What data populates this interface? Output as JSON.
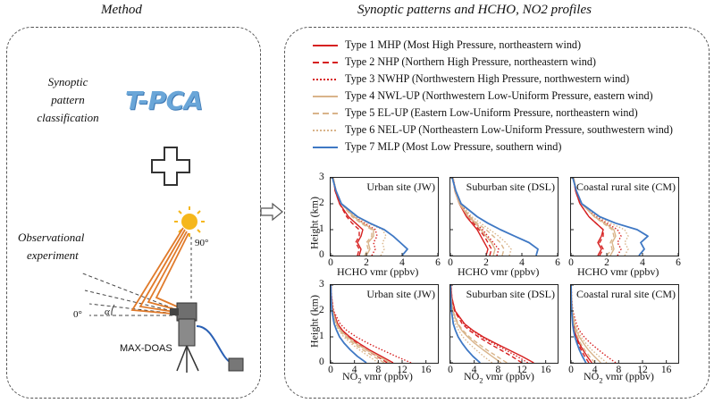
{
  "method_panel": {
    "title": "Method",
    "synoptic_text": [
      "Synoptic",
      "pattern",
      "classification"
    ],
    "tpca_label": "T-PCA",
    "observational_text": [
      "Observational",
      "experiment"
    ],
    "angle_90": "90°",
    "angle_0": "0°",
    "angle_alpha": "α",
    "instrument_label": "MAX-DOAS"
  },
  "results_panel": {
    "title": "Synoptic patterns and HCHO, NO2 profiles"
  },
  "legend": [
    {
      "label": "Type 1 MHP (Most High Pressure, northeastern wind)",
      "color": "#d62020",
      "dash": "solid"
    },
    {
      "label": "Type 2 NHP (Northern High Pressure, northeastern wind)",
      "color": "#d62020",
      "dash": "dashed"
    },
    {
      "label": "Type 3 NWHP (Northwestern High Pressure, northwestern wind)",
      "color": "#d62020",
      "dash": "dotted"
    },
    {
      "label": "Type 4 NWL-UP (Northwestern Low-Uniform Pressure, eastern wind)",
      "color": "#d9b48a",
      "dash": "solid"
    },
    {
      "label": "Type 5 EL-UP (Eastern Low-Uniform Pressure, northeastern wind)",
      "color": "#d9b48a",
      "dash": "dashed"
    },
    {
      "label": "Type 6 NEL-UP (Northeastern Low-Uniform Pressure, southwestern wind)",
      "color": "#d9b48a",
      "dash": "dotted"
    },
    {
      "label": "Type 7 MLP (Most Low Pressure, southern wind)",
      "color": "#3f78c4",
      "dash": "solid"
    }
  ],
  "axis_labels": {
    "height": "Height (km)",
    "hcho": "HCHO vmr (ppbv)",
    "no2_prefix": "NO",
    "no2_sub": "2",
    "no2_suffix": " vmr (ppbv)"
  },
  "chart_data": [
    {
      "type": "line",
      "site": "Urban site (JW)",
      "species": "HCHO",
      "xlim": [
        0,
        6
      ],
      "ylim": [
        0,
        3
      ],
      "xticks": [
        "0",
        "2",
        "4",
        "6"
      ],
      "yticks": [
        "0",
        "1",
        "2",
        "3"
      ],
      "y": [
        0,
        0.25,
        0.5,
        0.75,
        1.0,
        1.25,
        1.5,
        2.0,
        2.5,
        3.0
      ],
      "series": [
        {
          "x": [
            1.6,
            1.7,
            1.5,
            1.7,
            1.8,
            1.4,
            1.0,
            0.5,
            0.25,
            0.15
          ]
        },
        {
          "x": [
            1.5,
            1.6,
            1.4,
            1.6,
            1.6,
            1.2,
            0.9,
            0.5,
            0.25,
            0.15
          ]
        },
        {
          "x": [
            2.3,
            2.5,
            2.4,
            2.6,
            2.5,
            1.9,
            1.3,
            0.6,
            0.3,
            0.15
          ]
        },
        {
          "x": [
            2.0,
            2.2,
            2.1,
            2.4,
            2.4,
            1.8,
            1.3,
            0.6,
            0.3,
            0.15
          ]
        },
        {
          "x": [
            1.9,
            2.1,
            2.0,
            2.3,
            2.3,
            1.7,
            1.2,
            0.6,
            0.3,
            0.15
          ]
        },
        {
          "x": [
            2.8,
            3.0,
            2.9,
            3.1,
            2.9,
            2.1,
            1.4,
            0.6,
            0.3,
            0.15
          ]
        },
        {
          "x": [
            4.0,
            4.3,
            3.9,
            3.5,
            3.0,
            2.2,
            1.5,
            0.6,
            0.3,
            0.1
          ]
        }
      ]
    },
    {
      "type": "line",
      "site": "Suburban site (DSL)",
      "species": "HCHO",
      "xlim": [
        0,
        6
      ],
      "ylim": [
        0,
        3
      ],
      "xticks": [
        "0",
        "2",
        "4",
        "6"
      ],
      "yticks": [
        "0",
        "1",
        "2",
        "3"
      ],
      "y": [
        0,
        0.25,
        0.5,
        0.75,
        1.0,
        1.25,
        1.5,
        2.0,
        2.5,
        3.0
      ],
      "series": [
        {
          "x": [
            2.0,
            2.1,
            1.9,
            1.7,
            1.5,
            1.2,
            0.9,
            0.5,
            0.25,
            0.15
          ]
        },
        {
          "x": [
            2.2,
            2.3,
            2.1,
            1.9,
            1.6,
            1.3,
            1.0,
            0.5,
            0.25,
            0.15
          ]
        },
        {
          "x": [
            2.6,
            2.7,
            2.4,
            2.1,
            1.8,
            1.4,
            1.1,
            0.55,
            0.3,
            0.15
          ]
        },
        {
          "x": [
            2.4,
            2.5,
            2.3,
            2.0,
            1.7,
            1.4,
            1.0,
            0.5,
            0.25,
            0.15
          ]
        },
        {
          "x": [
            2.9,
            3.0,
            2.8,
            2.4,
            2.0,
            1.5,
            1.1,
            0.55,
            0.3,
            0.15
          ]
        },
        {
          "x": [
            3.3,
            3.4,
            3.1,
            2.7,
            2.2,
            1.7,
            1.2,
            0.6,
            0.3,
            0.15
          ]
        },
        {
          "x": [
            4.8,
            4.9,
            4.4,
            3.6,
            2.8,
            2.1,
            1.5,
            0.6,
            0.3,
            0.1
          ]
        }
      ]
    },
    {
      "type": "line",
      "site": "Coastal rural site (CM)",
      "species": "HCHO",
      "xlim": [
        0,
        6
      ],
      "ylim": [
        0,
        3
      ],
      "xticks": [
        "0",
        "2",
        "4",
        "6"
      ],
      "yticks": [
        "0",
        "1",
        "2",
        "3"
      ],
      "y": [
        0,
        0.25,
        0.5,
        0.75,
        1.0,
        1.25,
        1.5,
        2.0,
        2.5,
        3.0
      ],
      "series": [
        {
          "x": [
            1.5,
            1.7,
            1.5,
            1.7,
            1.8,
            1.4,
            1.0,
            0.5,
            0.25,
            0.15
          ]
        },
        {
          "x": [
            1.6,
            1.8,
            1.6,
            1.8,
            1.8,
            1.4,
            1.0,
            0.5,
            0.25,
            0.15
          ]
        },
        {
          "x": [
            2.6,
            2.8,
            2.6,
            2.8,
            2.6,
            2.0,
            1.4,
            0.6,
            0.3,
            0.15
          ]
        },
        {
          "x": [
            2.2,
            2.4,
            2.3,
            2.5,
            2.4,
            1.9,
            1.3,
            0.6,
            0.3,
            0.15
          ]
        },
        {
          "x": [
            2.0,
            2.3,
            2.2,
            2.4,
            2.3,
            1.8,
            1.3,
            0.6,
            0.3,
            0.15
          ]
        },
        {
          "x": [
            3.0,
            3.2,
            3.0,
            3.2,
            3.0,
            2.2,
            1.5,
            0.6,
            0.3,
            0.15
          ]
        },
        {
          "x": [
            3.8,
            4.1,
            3.9,
            4.3,
            3.7,
            2.5,
            1.6,
            0.6,
            0.3,
            0.1
          ]
        }
      ]
    },
    {
      "type": "line",
      "site": "Urban site (JW)",
      "species": "NO2",
      "xlim": [
        0,
        18
      ],
      "ylim": [
        0,
        3
      ],
      "xticks": [
        "0",
        "4",
        "8",
        "12",
        "16"
      ],
      "yticks": [
        "0",
        "1",
        "2",
        "3"
      ],
      "y": [
        0,
        0.25,
        0.5,
        0.75,
        1.0,
        1.25,
        1.5,
        2.0,
        2.5,
        3.0
      ],
      "series": [
        {
          "x": [
            10.5,
            8.5,
            6.5,
            4.8,
            3.2,
            2.0,
            1.2,
            0.4,
            0.15,
            0.05
          ]
        },
        {
          "x": [
            9.5,
            7.8,
            6.0,
            4.4,
            3.0,
            1.9,
            1.1,
            0.4,
            0.15,
            0.05
          ]
        },
        {
          "x": [
            13.5,
            11.0,
            8.6,
            6.3,
            4.3,
            2.7,
            1.6,
            0.5,
            0.2,
            0.05
          ]
        },
        {
          "x": [
            10.0,
            8.0,
            6.0,
            4.2,
            2.8,
            1.7,
            1.0,
            0.35,
            0.1,
            0.05
          ]
        },
        {
          "x": [
            9.0,
            7.2,
            5.4,
            3.8,
            2.5,
            1.5,
            0.9,
            0.3,
            0.1,
            0.05
          ]
        },
        {
          "x": [
            8.0,
            6.4,
            4.8,
            3.4,
            2.2,
            1.4,
            0.8,
            0.3,
            0.1,
            0.05
          ]
        },
        {
          "x": [
            6.0,
            4.5,
            3.3,
            2.3,
            1.5,
            1.0,
            0.6,
            0.2,
            0.08,
            0.03
          ]
        }
      ]
    },
    {
      "type": "line",
      "site": "Suburban site (DSL)",
      "species": "NO2",
      "xlim": [
        0,
        18
      ],
      "ylim": [
        0,
        3
      ],
      "xticks": [
        "0",
        "4",
        "8",
        "12",
        "16"
      ],
      "yticks": [
        "0",
        "1",
        "2",
        "3"
      ],
      "y": [
        0,
        0.25,
        0.5,
        0.75,
        1.0,
        1.25,
        1.5,
        2.0,
        2.5,
        3.0
      ],
      "series": [
        {
          "x": [
            14.0,
            12.0,
            9.8,
            7.6,
            5.5,
            3.8,
            2.4,
            0.8,
            0.25,
            0.1
          ]
        },
        {
          "x": [
            12.0,
            10.3,
            8.4,
            6.5,
            4.7,
            3.2,
            2.0,
            0.7,
            0.2,
            0.08
          ]
        },
        {
          "x": [
            13.0,
            11.2,
            9.2,
            7.2,
            5.2,
            3.6,
            2.3,
            0.8,
            0.25,
            0.1
          ]
        },
        {
          "x": [
            8.5,
            7.0,
            5.5,
            4.1,
            2.9,
            1.9,
            1.2,
            0.4,
            0.12,
            0.05
          ]
        },
        {
          "x": [
            9.5,
            7.8,
            6.1,
            4.6,
            3.2,
            2.1,
            1.3,
            0.45,
            0.15,
            0.05
          ]
        },
        {
          "x": [
            7.0,
            5.6,
            4.3,
            3.1,
            2.1,
            1.4,
            0.85,
            0.3,
            0.1,
            0.04
          ]
        },
        {
          "x": [
            5.0,
            3.8,
            2.8,
            2.0,
            1.3,
            0.85,
            0.5,
            0.18,
            0.06,
            0.02
          ]
        }
      ]
    },
    {
      "type": "line",
      "site": "Coastal rural site (CM)",
      "species": "NO2",
      "xlim": [
        0,
        18
      ],
      "ylim": [
        0,
        3
      ],
      "xticks": [
        "0",
        "4",
        "8",
        "12",
        "16"
      ],
      "yticks": [
        "0",
        "1",
        "2",
        "3"
      ],
      "y": [
        0,
        0.25,
        0.5,
        0.75,
        1.0,
        1.25,
        1.5,
        2.0,
        2.5,
        3.0
      ],
      "series": [
        {
          "x": [
            3.5,
            2.7,
            2.0,
            1.4,
            0.9,
            0.6,
            0.4,
            0.15,
            0.05,
            0.02
          ]
        },
        {
          "x": [
            3.0,
            2.3,
            1.7,
            1.2,
            0.8,
            0.5,
            0.3,
            0.12,
            0.04,
            0.02
          ]
        },
        {
          "x": [
            7.5,
            6.0,
            4.6,
            3.3,
            2.2,
            1.4,
            0.9,
            0.3,
            0.1,
            0.04
          ]
        },
        {
          "x": [
            5.0,
            3.9,
            2.9,
            2.1,
            1.4,
            0.9,
            0.55,
            0.2,
            0.07,
            0.03
          ]
        },
        {
          "x": [
            4.0,
            3.1,
            2.3,
            1.6,
            1.1,
            0.7,
            0.45,
            0.16,
            0.05,
            0.02
          ]
        },
        {
          "x": [
            6.0,
            4.7,
            3.5,
            2.5,
            1.7,
            1.1,
            0.7,
            0.25,
            0.08,
            0.03
          ]
        },
        {
          "x": [
            2.5,
            1.9,
            1.4,
            1.0,
            0.65,
            0.42,
            0.27,
            0.1,
            0.03,
            0.01
          ]
        }
      ]
    }
  ]
}
